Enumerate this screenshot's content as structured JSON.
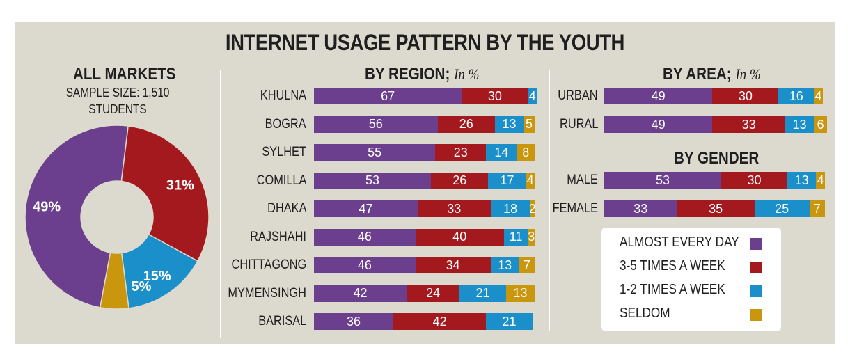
{
  "title": "INTERNET USAGE PATTERN BY THE YOUTH",
  "colors": {
    "almost_every_day": "#6b3f8d",
    "three_five": "#a3191e",
    "one_two": "#1a8fc9",
    "seldom": "#c9960e"
  },
  "all_markets": {
    "heading": "ALL MARKETS",
    "sample_line1": "SAMPLE SIZE: 1,510",
    "sample_line2": "STUDENTS"
  },
  "region": {
    "heading": "BY REGION;",
    "unit": "In %"
  },
  "area": {
    "heading": "BY AREA;",
    "unit": "In %"
  },
  "gender": {
    "heading": "BY GENDER"
  },
  "legend": {
    "items": [
      "ALMOST EVERY DAY",
      "3-5 TIMES A WEEK",
      "1-2 TIMES A WEEK",
      "SELDOM"
    ]
  },
  "chart_data": [
    {
      "type": "pie",
      "title": "ALL MARKETS",
      "subtitle": "SAMPLE SIZE: 1,510 STUDENTS",
      "slices": [
        {
          "category": "ALMOST EVERY DAY",
          "value": 49,
          "label": "49%"
        },
        {
          "category": "3-5 TIMES A WEEK",
          "value": 31,
          "label": "31%"
        },
        {
          "category": "1-2 TIMES A WEEK",
          "value": 15,
          "label": "15%"
        },
        {
          "category": "SELDOM",
          "value": 5,
          "label": "5%"
        }
      ]
    },
    {
      "type": "bar",
      "orientation": "horizontal",
      "stacked": true,
      "title": "BY REGION; In %",
      "categories": [
        "KHULNA",
        "BOGRA",
        "SYLHET",
        "COMILLA",
        "DHAKA",
        "RAJSHAHI",
        "CHITTAGONG",
        "MYMENSINGH",
        "BARISAL"
      ],
      "series": [
        {
          "name": "ALMOST EVERY DAY",
          "values": [
            67,
            56,
            55,
            53,
            47,
            46,
            46,
            42,
            36
          ]
        },
        {
          "name": "3-5 TIMES A WEEK",
          "values": [
            30,
            26,
            23,
            26,
            33,
            40,
            34,
            24,
            42
          ]
        },
        {
          "name": "1-2 TIMES A WEEK",
          "values": [
            4,
            13,
            14,
            17,
            18,
            11,
            13,
            21,
            21
          ]
        },
        {
          "name": "SELDOM",
          "values": [
            null,
            5,
            8,
            4,
            2,
            3,
            7,
            13,
            null
          ]
        }
      ]
    },
    {
      "type": "bar",
      "orientation": "horizontal",
      "stacked": true,
      "title": "BY AREA; In %",
      "categories": [
        "URBAN",
        "RURAL"
      ],
      "series": [
        {
          "name": "ALMOST EVERY DAY",
          "values": [
            49,
            49
          ]
        },
        {
          "name": "3-5 TIMES A WEEK",
          "values": [
            30,
            33
          ]
        },
        {
          "name": "1-2 TIMES A WEEK",
          "values": [
            16,
            13
          ]
        },
        {
          "name": "SELDOM",
          "values": [
            4,
            6
          ]
        }
      ]
    },
    {
      "type": "bar",
      "orientation": "horizontal",
      "stacked": true,
      "title": "BY GENDER",
      "categories": [
        "MALE",
        "FEMALE"
      ],
      "series": [
        {
          "name": "ALMOST EVERY DAY",
          "values": [
            53,
            33
          ]
        },
        {
          "name": "3-5 TIMES A WEEK",
          "values": [
            30,
            35
          ]
        },
        {
          "name": "1-2 TIMES A WEEK",
          "values": [
            13,
            25
          ]
        },
        {
          "name": "SELDOM",
          "values": [
            4,
            7
          ]
        }
      ]
    }
  ]
}
